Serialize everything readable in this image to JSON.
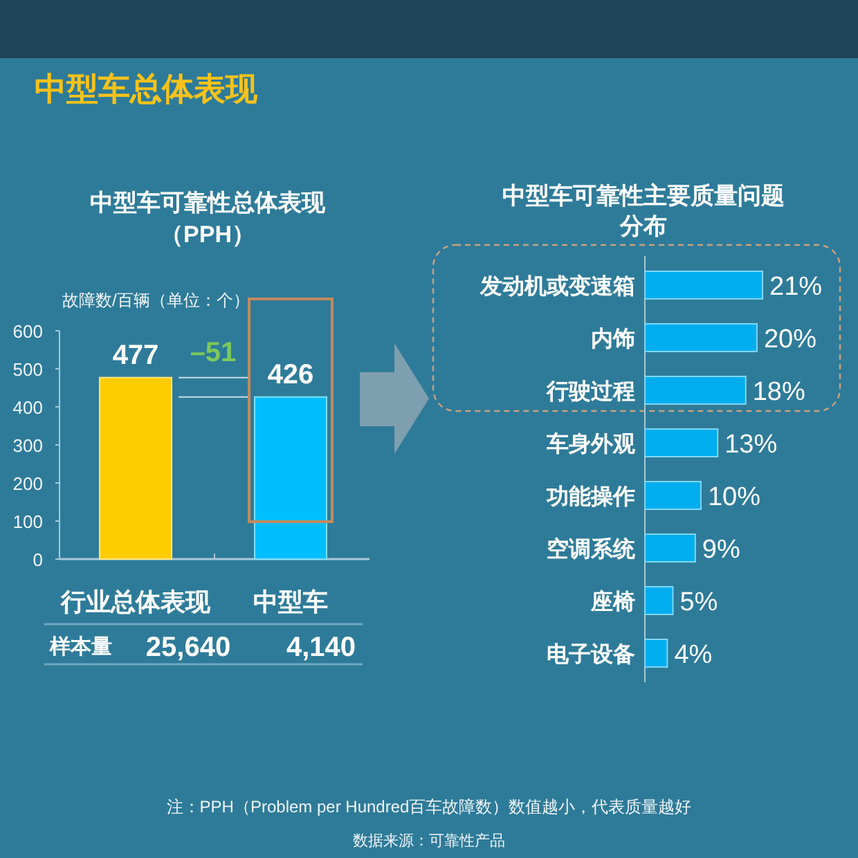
{
  "chart_data": [
    {
      "type": "other",
      "title": "中型车总体表现",
      "annotations": [
        "注：PPH（Problem per Hundred百车故障数）数值越小，代表质量越好",
        "数据来源：可靠性产品"
      ]
    },
    {
      "type": "bar",
      "title": "中型车可靠性总体表现（PPH）",
      "ylabel": "故障数/百辆（单位：个）",
      "categories": [
        "行业总体表现",
        "中型车"
      ],
      "values": [
        477,
        426
      ],
      "colors": [
        "#ffcc00",
        "#00bfff"
      ],
      "data_labels": true,
      "ylim": [
        0,
        600
      ],
      "yticks": [
        0,
        100,
        200,
        300,
        400,
        500,
        600
      ],
      "annotations": [
        "–51",
        "样本量",
        "25,640",
        "4,140"
      ]
    },
    {
      "type": "bar",
      "orientation": "horizontal",
      "title": "中型车可靠性主要质量问题分布",
      "categories": [
        "发动机或变速箱",
        "内饰",
        "行驶过程",
        "车身外观",
        "功能操作",
        "空调系统",
        "座椅",
        "电子设备"
      ],
      "values": [
        21,
        20,
        18,
        13,
        10,
        9,
        5,
        4
      ],
      "value_labels": [
        "21%",
        "20%",
        "18%",
        "13%",
        "10%",
        "9%",
        "5%",
        "4%"
      ],
      "color": "#00aeef"
    }
  ]
}
